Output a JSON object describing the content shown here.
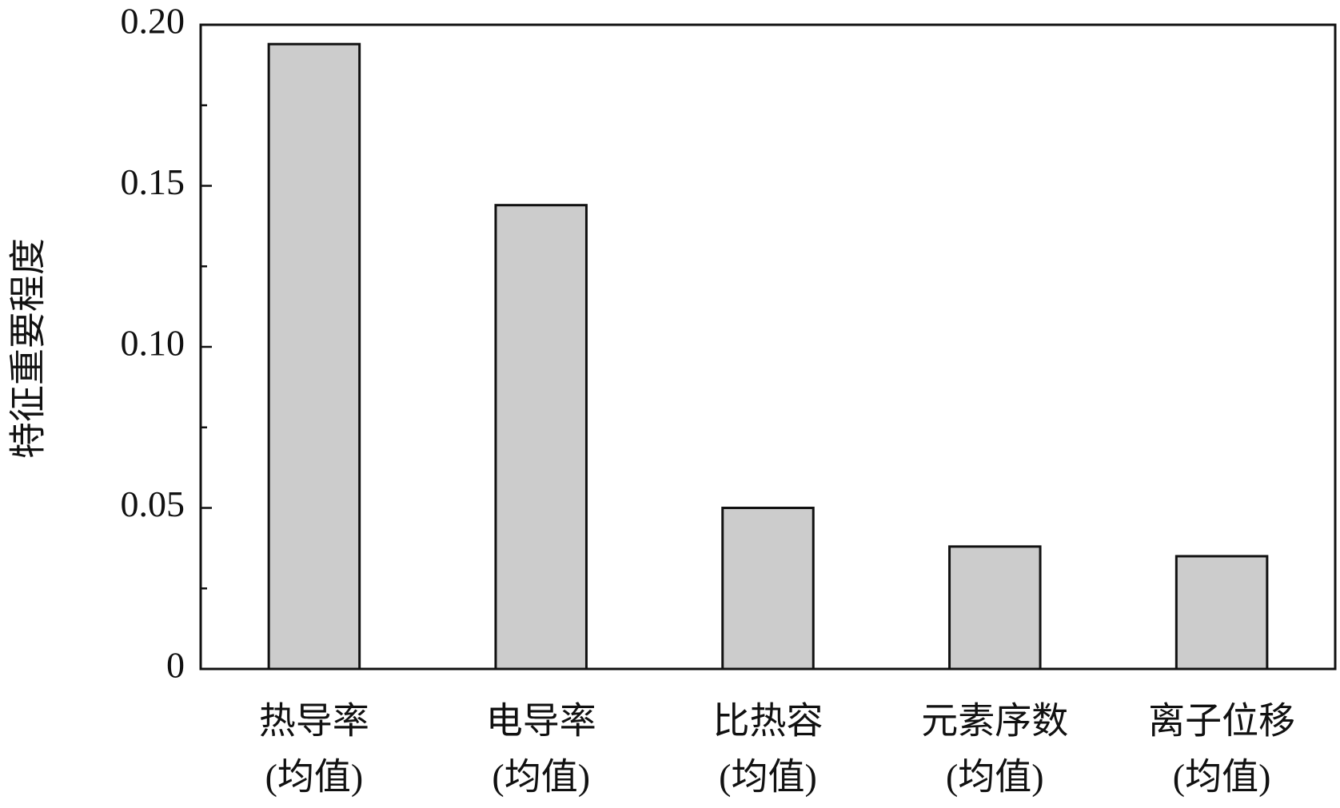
{
  "chart_data": {
    "type": "bar",
    "ylabel": "特征重要程度",
    "categories": [
      [
        "热导率",
        "(均值)"
      ],
      [
        "电导率",
        "(均值)"
      ],
      [
        "比热容",
        "(均值)"
      ],
      [
        "元素序数",
        "(均值)"
      ],
      [
        "离子位移",
        "(均值)"
      ]
    ],
    "values": [
      0.194,
      0.144,
      0.05,
      0.038,
      0.035
    ],
    "color": "#cccccc",
    "ylim": [
      0,
      0.2
    ],
    "yticks": [
      0,
      0.05,
      {
        "value": 0.1,
        "label": "0.10"
      },
      0.15,
      {
        "value": 0.2,
        "label": "0.20"
      }
    ],
    "minor_yticks": [
      0.025,
      0.075,
      0.125,
      0.175
    ],
    "grid": false
  }
}
